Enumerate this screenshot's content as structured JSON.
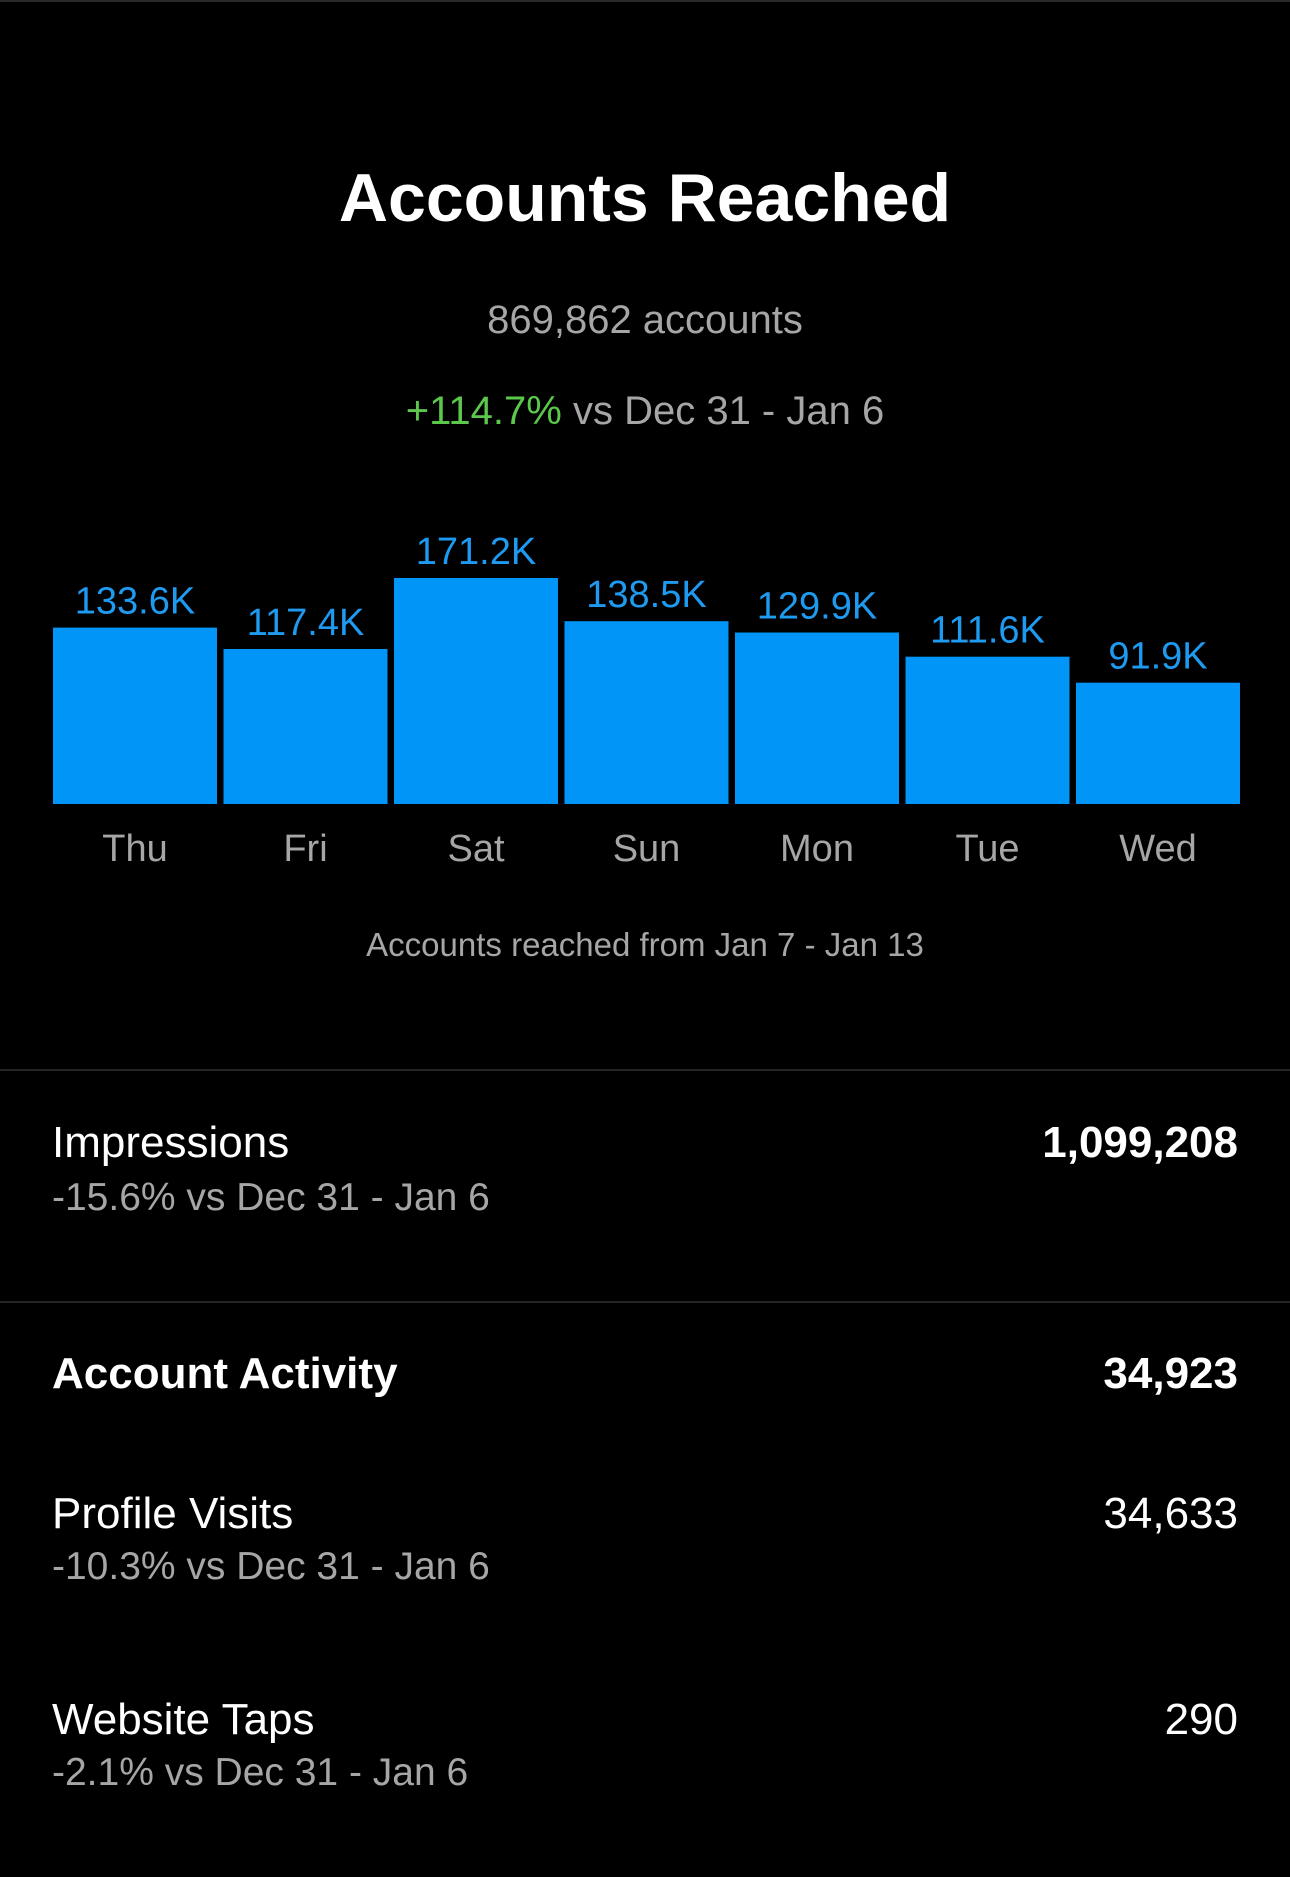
{
  "header": {
    "title": "Accounts Reached",
    "accounts_total": "869,862 accounts",
    "delta": "+114.7%",
    "comparison_period": "vs Dec 31 - Jan 6"
  },
  "chart_caption": "Accounts reached from Jan 7 - Jan 13",
  "chart_data": {
    "type": "bar",
    "categories": [
      "Thu",
      "Fri",
      "Sat",
      "Sun",
      "Mon",
      "Tue",
      "Wed"
    ],
    "values": [
      133.6,
      117.4,
      171.2,
      138.5,
      129.9,
      111.6,
      91.9
    ],
    "labels": [
      "133.6K",
      "117.4K",
      "171.2K",
      "138.5K",
      "129.9K",
      "111.6K",
      "91.9K"
    ],
    "unit": "K",
    "title": "",
    "xlabel": "",
    "ylabel": "",
    "ylim": [
      0,
      171.2
    ],
    "grid": false,
    "bar_color": "#0095f6",
    "label_color": "#1e9bf0"
  },
  "impressions": {
    "label": "Impressions",
    "change": "-15.6% vs Dec 31 - Jan 6",
    "value": "1,099,208"
  },
  "account_activity": {
    "label": "Account Activity",
    "value": "34,923",
    "profile_visits": {
      "label": "Profile Visits",
      "change": "-10.3% vs Dec 31 - Jan 6",
      "value": "34,633"
    },
    "website_taps": {
      "label": "Website Taps",
      "change": "-2.1% vs Dec 31 - Jan 6",
      "value": "290"
    }
  },
  "colors": {
    "background": "#000000",
    "accent_blue": "#0095f6",
    "positive_green": "#5bc84c",
    "secondary_text": "#a6a6a6"
  }
}
